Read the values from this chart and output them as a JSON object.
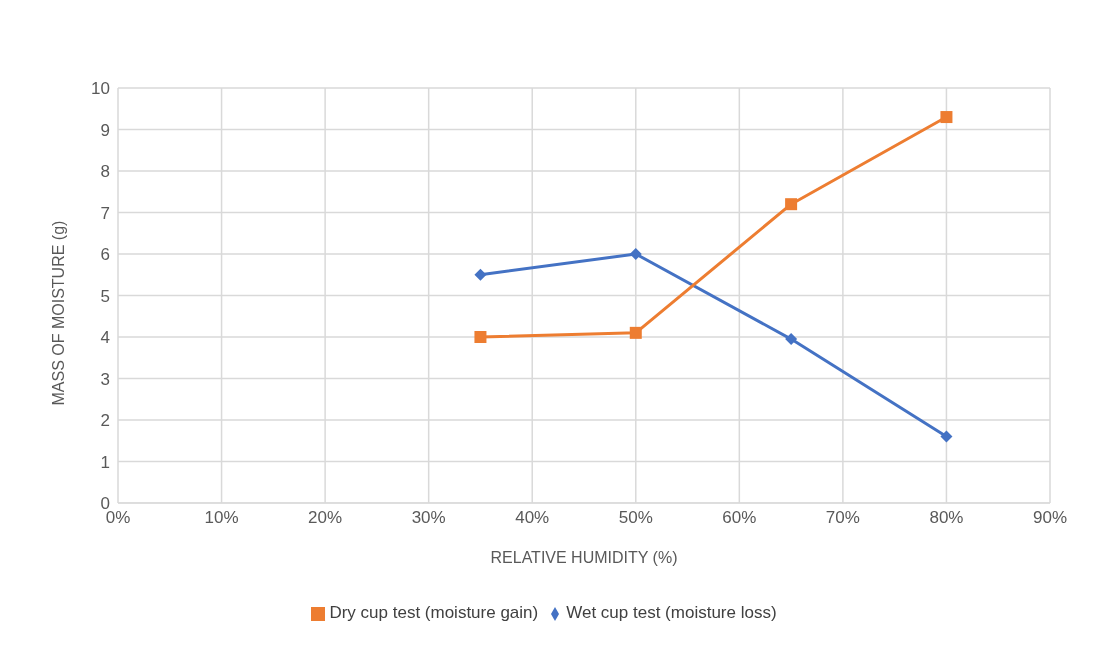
{
  "chart_data": {
    "type": "line",
    "xlabel": "RELATIVE HUMIDITY (%)",
    "ylabel": "MASS OF MOISTURE (g)",
    "x": [
      35,
      50,
      65,
      80
    ],
    "series": [
      {
        "name": "Wet cup test (moisture loss)",
        "color": "#4472c4",
        "marker": "diamond",
        "values": [
          5.5,
          6.0,
          3.95,
          1.6
        ]
      },
      {
        "name": "Dry cup test (moisture gain)",
        "color": "#ed7d31",
        "marker": "square",
        "values": [
          4.0,
          4.1,
          7.2,
          9.3
        ]
      }
    ],
    "xlim": [
      0,
      90
    ],
    "xticks": [
      {
        "value": 0,
        "label": "0%"
      },
      {
        "value": 10,
        "label": "10%"
      },
      {
        "value": 20,
        "label": "20%"
      },
      {
        "value": 30,
        "label": "30%"
      },
      {
        "value": 40,
        "label": "40%"
      },
      {
        "value": 50,
        "label": "50%"
      },
      {
        "value": 60,
        "label": "60%"
      },
      {
        "value": 70,
        "label": "70%"
      },
      {
        "value": 80,
        "label": "80%"
      },
      {
        "value": 90,
        "label": "90%"
      }
    ],
    "ylim": [
      0,
      10
    ],
    "yticks": [
      0,
      1,
      2,
      3,
      4,
      5,
      6,
      7,
      8,
      9,
      10
    ],
    "grid": true,
    "legend": "bottom"
  }
}
